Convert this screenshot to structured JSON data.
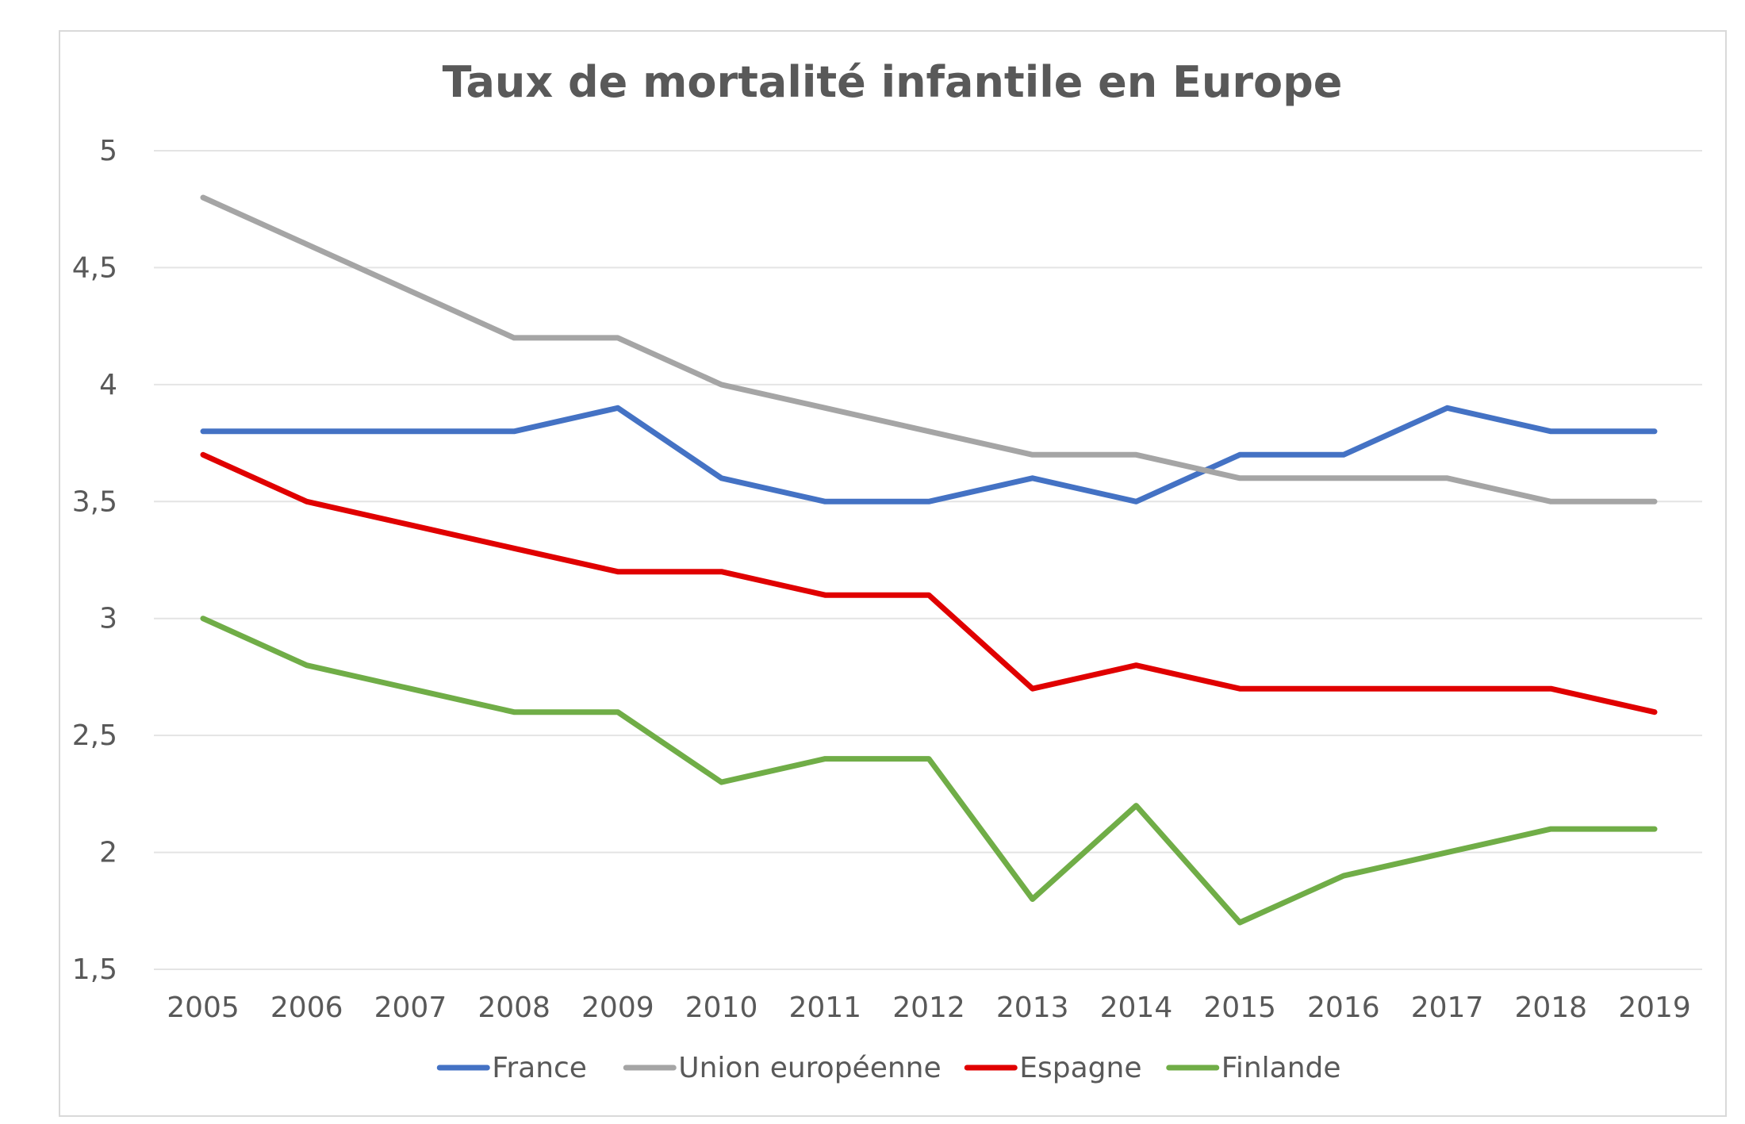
{
  "chart_data": {
    "type": "line",
    "title": "Taux de mortalité infantile en Europe",
    "xlabel": "",
    "ylabel": "",
    "categories": [
      "2005",
      "2006",
      "2007",
      "2008",
      "2009",
      "2010",
      "2011",
      "2012",
      "2013",
      "2014",
      "2015",
      "2016",
      "2017",
      "2018",
      "2019"
    ],
    "ylim": [
      1.5,
      5
    ],
    "yticks": [
      {
        "value": 1.5,
        "label": "1,5"
      },
      {
        "value": 2,
        "label": "2"
      },
      {
        "value": 2.5,
        "label": "2,5"
      },
      {
        "value": 3,
        "label": "3"
      },
      {
        "value": 3.5,
        "label": "3,5"
      },
      {
        "value": 4,
        "label": "4"
      },
      {
        "value": 4.5,
        "label": "4,5"
      },
      {
        "value": 5,
        "label": "5"
      }
    ],
    "grid": true,
    "legend_position": "bottom",
    "series": [
      {
        "name": "France",
        "color": "#4472c4",
        "values": [
          3.8,
          3.8,
          3.8,
          3.8,
          3.9,
          3.6,
          3.5,
          3.5,
          3.6,
          3.5,
          3.7,
          3.7,
          3.9,
          3.8,
          3.8
        ]
      },
      {
        "name": "Union européenne",
        "color": "#a5a5a5",
        "values": [
          4.8,
          4.6,
          4.4,
          4.2,
          4.2,
          4.0,
          3.9,
          3.8,
          3.7,
          3.7,
          3.6,
          3.6,
          3.6,
          3.5,
          3.5
        ]
      },
      {
        "name": "Espagne",
        "color": "#e00000",
        "values": [
          3.7,
          3.5,
          3.4,
          3.3,
          3.2,
          3.2,
          3.1,
          3.1,
          2.7,
          2.8,
          2.7,
          2.7,
          2.7,
          2.7,
          2.6
        ]
      },
      {
        "name": "Finlande",
        "color": "#70ad47",
        "values": [
          3.0,
          2.8,
          2.7,
          2.6,
          2.6,
          2.3,
          2.4,
          2.4,
          1.8,
          2.2,
          1.7,
          1.9,
          2.0,
          2.1,
          2.1
        ]
      }
    ]
  }
}
